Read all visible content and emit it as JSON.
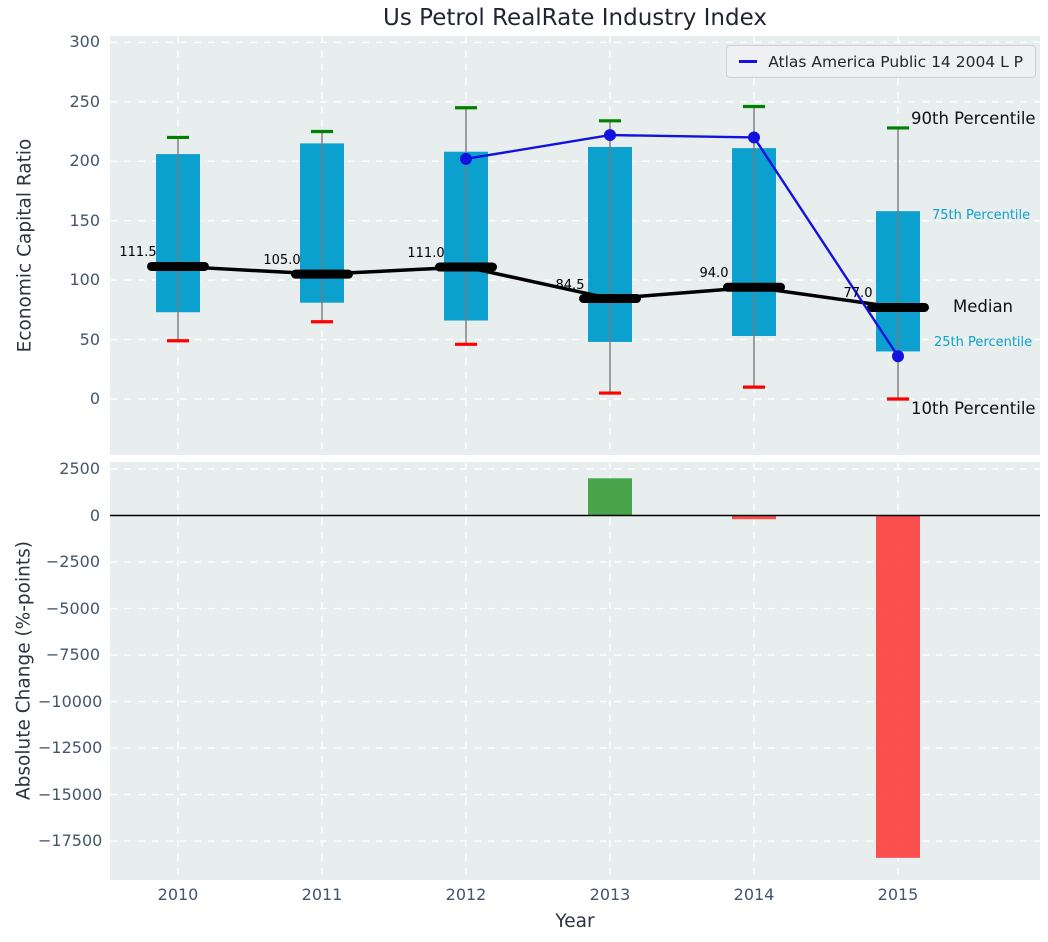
{
  "title": "Us Petrol RealRate Industry Index",
  "xlabel": "Year",
  "legend": {
    "label": "Atlas America Public 14 2004 L P"
  },
  "colors": {
    "box": "#0ba0ce",
    "p90_cap": "#008000",
    "p10_cap": "#ff0000",
    "whisker": "#7a7a7a",
    "median": "#000000",
    "company_line": "#1212e0",
    "positive_bar": "#3b9e3e",
    "negative_bar": "#fb4141",
    "axes_background": "#e8edee",
    "grid": "#ffffff",
    "tick_text": "#43566b",
    "annotation_minor": "#0ba3cf"
  },
  "chart_data": [
    {
      "type": "boxplot",
      "title": "Us Petrol RealRate Industry Index",
      "ylabel": "Economic Capital Ratio",
      "ylim": [
        -45,
        305
      ],
      "yticks": [
        300,
        250,
        200,
        150,
        100,
        50,
        0
      ],
      "grid": true,
      "legend_position": "upper right",
      "categories": [
        2010,
        2011,
        2012,
        2013,
        2014,
        2015
      ],
      "series": [
        {
          "name": "90th Percentile",
          "values": [
            220,
            225,
            245,
            234,
            246,
            228
          ]
        },
        {
          "name": "75th Percentile",
          "values": [
            206,
            215,
            208,
            212,
            211,
            158
          ]
        },
        {
          "name": "Median",
          "values": [
            111.5,
            105.0,
            111.0,
            84.5,
            94.0,
            77.0
          ]
        },
        {
          "name": "25th Percentile",
          "values": [
            73,
            81,
            66,
            48,
            53,
            40
          ]
        },
        {
          "name": "10th Percentile",
          "values": [
            49,
            65,
            46,
            5,
            10,
            0
          ]
        }
      ],
      "median_labels": [
        "111.5",
        "105.0",
        "111.0",
        "84.5",
        "94.0",
        "77.0"
      ],
      "company_line": {
        "name": "Atlas America Public 14 2004 L P",
        "x": [
          2012,
          2013,
          2014,
          2015
        ],
        "y": [
          202,
          222,
          220,
          36
        ]
      },
      "annotations": [
        "90th Percentile",
        "75th Percentile",
        "Median",
        "25th Percentile",
        "10th Percentile"
      ]
    },
    {
      "type": "bar",
      "ylabel": "Absolute Change (%-points)",
      "xlabel": "Year",
      "ylim": [
        -19600,
        2880
      ],
      "yticks": [
        2500,
        0,
        -2500,
        -5000,
        -7500,
        -10000,
        -12500,
        -15000,
        -17500
      ],
      "ytick_labels": [
        "2500",
        "0",
        "−2500",
        "−5000",
        "−7500",
        "−10000",
        "−12500",
        "−15000",
        "−17500"
      ],
      "grid": true,
      "categories": [
        2010,
        2011,
        2012,
        2013,
        2014,
        2015
      ],
      "values": [
        null,
        null,
        null,
        2000,
        -200,
        -18400
      ]
    }
  ]
}
